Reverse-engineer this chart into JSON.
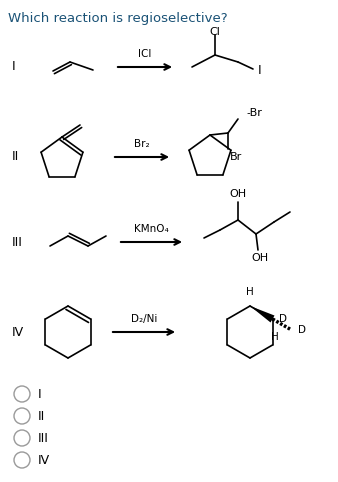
{
  "title": "Which reaction is regioselective?",
  "title_color": "#1a5276",
  "title_fontsize": 9.5,
  "bg_color": "#ffffff",
  "text_color": "#000000",
  "figsize": [
    3.38,
    4.82
  ],
  "dpi": 100,
  "row_labels": [
    "I",
    "II",
    "III",
    "IV"
  ],
  "row_reagents": [
    "ICl",
    "Br₂",
    "KMnO₄",
    "D₂/Ni"
  ],
  "options": [
    "I",
    "II",
    "III",
    "IV"
  ]
}
